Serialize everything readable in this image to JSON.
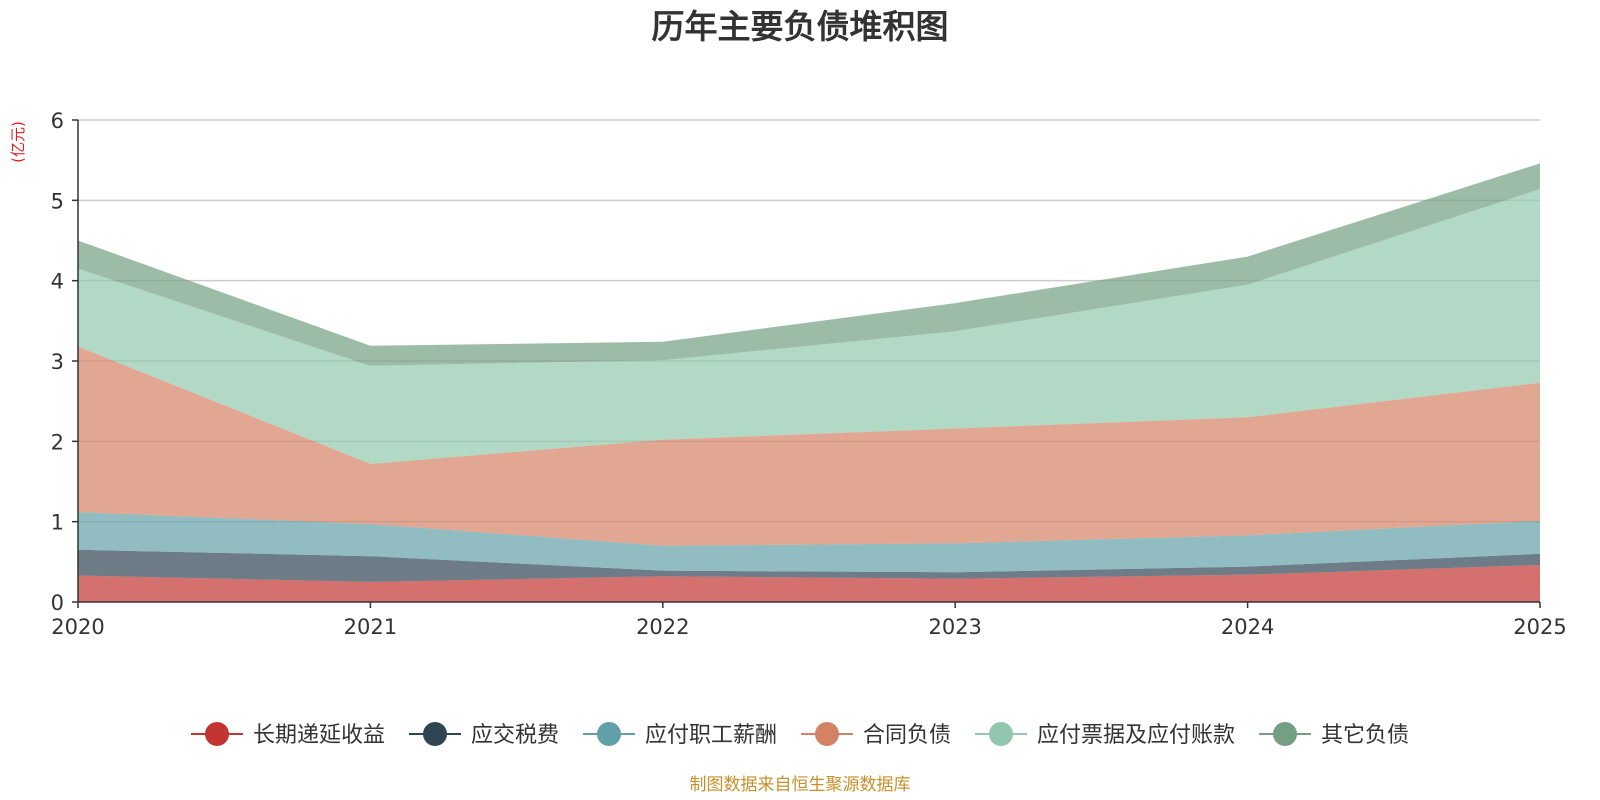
{
  "chart_data": {
    "type": "area",
    "stacked": true,
    "title": "历年主要负债堆积图",
    "ylabel": "(亿元)",
    "xlabel": "",
    "categories": [
      "2020",
      "2021",
      "2022",
      "2023",
      "2024",
      "2025"
    ],
    "ylim": [
      0,
      6
    ],
    "yticks": [
      "0",
      "1",
      "2",
      "3",
      "4",
      "5",
      "6"
    ],
    "grid": true,
    "legend_position": "bottom",
    "series": [
      {
        "name": "长期递延收益",
        "color": "#c23531",
        "values": [
          0.33,
          0.25,
          0.32,
          0.29,
          0.34,
          0.46
        ]
      },
      {
        "name": "应交税费",
        "color": "#2f4554",
        "values": [
          0.32,
          0.32,
          0.07,
          0.08,
          0.1,
          0.14
        ]
      },
      {
        "name": "应付职工薪酬",
        "color": "#61a0a8",
        "values": [
          0.47,
          0.4,
          0.31,
          0.36,
          0.39,
          0.41
        ]
      },
      {
        "name": "合同负债",
        "color": "#d48265",
        "values": [
          2.06,
          0.75,
          1.32,
          1.43,
          1.47,
          1.72
        ]
      },
      {
        "name": "应付票据及应付账款",
        "color": "#91c7ae",
        "values": [
          0.97,
          1.22,
          0.99,
          1.21,
          1.65,
          2.41
        ]
      },
      {
        "name": "其它负债",
        "color": "#749f83",
        "values": [
          0.35,
          0.25,
          0.23,
          0.35,
          0.35,
          0.32
        ]
      }
    ]
  },
  "source_note": "制图数据来自恒生聚源数据库",
  "colors": {
    "unit_label": "#e01f1f",
    "source_note": "#c8902b",
    "axis": "#333333",
    "grid": "#cccccc"
  }
}
